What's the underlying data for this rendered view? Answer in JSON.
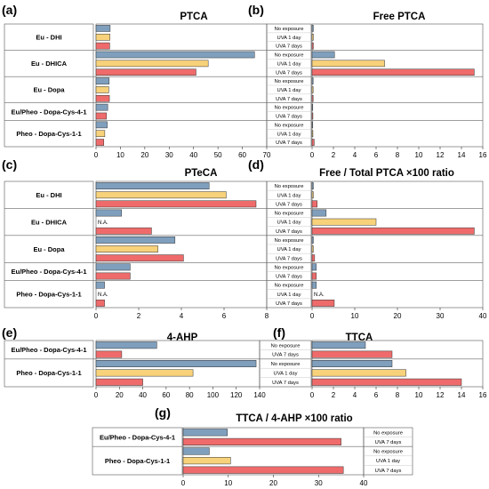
{
  "colors": {
    "No exposure": "#7f9fbd",
    "UVA 1 day": "#f7d27a",
    "UVA 7 days": "#ef6b6b"
  },
  "chart_data": [
    {
      "panel": "(a)",
      "type": "bar",
      "orientation": "horizontal",
      "title": "PTCA",
      "xlim": [
        0,
        70
      ],
      "ticks": [
        0,
        10,
        20,
        30,
        40,
        50,
        60,
        70
      ],
      "groups": [
        {
          "label": "Eu - DHI",
          "rows": [
            {
              "condition": "No exposure",
              "value": 5.8
            },
            {
              "condition": "UVA 1 day",
              "value": 5.7
            },
            {
              "condition": "UVA 7 days",
              "value": 5.6
            }
          ]
        },
        {
          "label": "Eu - DHICA",
          "rows": [
            {
              "condition": "No exposure",
              "value": 65
            },
            {
              "condition": "UVA 1 day",
              "value": 46
            },
            {
              "condition": "UVA 7 days",
              "value": 41
            }
          ]
        },
        {
          "label": "Eu - Dopa",
          "rows": [
            {
              "condition": "No exposure",
              "value": 5.4
            },
            {
              "condition": "UVA 1 day",
              "value": 5.2
            },
            {
              "condition": "UVA 7 days",
              "value": 5.5
            }
          ]
        },
        {
          "label": "Eu/Pheo - Dopa-Cys-4-1",
          "rows": [
            {
              "condition": "No exposure",
              "value": 4.8
            },
            {
              "condition": "UVA 7 days",
              "value": 4.3
            }
          ]
        },
        {
          "label": "Pheo - Dopa-Cys-1-1",
          "rows": [
            {
              "condition": "No exposure",
              "value": 4.6
            },
            {
              "condition": "UVA 1 day",
              "value": 3.6
            },
            {
              "condition": "UVA 7 days",
              "value": 3.2
            }
          ]
        }
      ]
    },
    {
      "panel": "(b)",
      "type": "bar",
      "orientation": "horizontal",
      "title": "Free PTCA",
      "xlim": [
        0,
        16
      ],
      "ticks": [
        0,
        2,
        4,
        6,
        8,
        10,
        12,
        14,
        16
      ],
      "groups": [
        {
          "rows": [
            {
              "condition": "No exposure",
              "value": 0.12
            },
            {
              "condition": "UVA 1 day",
              "value": 0.12
            },
            {
              "condition": "UVA 7 days",
              "value": 0.12
            }
          ]
        },
        {
          "rows": [
            {
              "condition": "No exposure",
              "value": 2.1
            },
            {
              "condition": "UVA 1 day",
              "value": 6.8
            },
            {
              "condition": "UVA 7 days",
              "value": 15.2
            }
          ]
        },
        {
          "rows": [
            {
              "condition": "No exposure",
              "value": 0.1
            },
            {
              "condition": "UVA 1 day",
              "value": 0.1
            },
            {
              "condition": "UVA 7 days",
              "value": 0.1
            }
          ]
        },
        {
          "rows": [
            {
              "condition": "No exposure",
              "value": 0.05
            },
            {
              "condition": "UVA 7 days",
              "value": 0.08
            }
          ]
        },
        {
          "rows": [
            {
              "condition": "No exposure",
              "value": 0.05
            },
            {
              "condition": "UVA 1 day",
              "value": 0.08
            },
            {
              "condition": "UVA 7 days",
              "value": 0.2
            }
          ]
        }
      ]
    },
    {
      "panel": "(c)",
      "type": "bar",
      "orientation": "horizontal",
      "title": "PTeCA",
      "xlim": [
        0,
        8
      ],
      "ticks": [
        0,
        2,
        4,
        6,
        8
      ],
      "groups": [
        {
          "label": "Eu - DHI",
          "rows": [
            {
              "condition": "No exposure",
              "value": 5.3
            },
            {
              "condition": "UVA 1 day",
              "value": 6.1
            },
            {
              "condition": "UVA 7 days",
              "value": 7.5
            }
          ]
        },
        {
          "label": "Eu - DHICA",
          "rows": [
            {
              "condition": "No exposure",
              "value": 1.2
            },
            {
              "condition": "UVA 1 day",
              "value": null,
              "note": "N.A."
            },
            {
              "condition": "UVA 7 days",
              "value": 2.6
            }
          ]
        },
        {
          "label": "Eu - Dopa",
          "rows": [
            {
              "condition": "No exposure",
              "value": 3.7
            },
            {
              "condition": "UVA 1 day",
              "value": 2.9
            },
            {
              "condition": "UVA 7 days",
              "value": 4.1
            }
          ]
        },
        {
          "label": "Eu/Pheo - Dopa-Cys-4-1",
          "rows": [
            {
              "condition": "No exposure",
              "value": 1.6
            },
            {
              "condition": "UVA 7 days",
              "value": 1.6
            }
          ]
        },
        {
          "label": "Pheo - Dopa-Cys-1-1",
          "rows": [
            {
              "condition": "No exposure",
              "value": 0.4
            },
            {
              "condition": "UVA 1 day",
              "value": null,
              "note": "N.A."
            },
            {
              "condition": "UVA 7 days",
              "value": 0.4
            }
          ]
        }
      ]
    },
    {
      "panel": "(d)",
      "type": "bar",
      "orientation": "horizontal",
      "title": "Free / Total PTCA ×100 ratio",
      "xlim": [
        0,
        40
      ],
      "ticks": [
        0,
        10,
        20,
        30,
        40
      ],
      "groups": [
        {
          "rows": [
            {
              "condition": "No exposure",
              "value": 0.3
            },
            {
              "condition": "UVA 1 day",
              "value": 0.3
            },
            {
              "condition": "UVA 7 days",
              "value": 1.2
            }
          ]
        },
        {
          "rows": [
            {
              "condition": "No exposure",
              "value": 3.3
            },
            {
              "condition": "UVA 1 day",
              "value": 15
            },
            {
              "condition": "UVA 7 days",
              "value": 38
            }
          ]
        },
        {
          "rows": [
            {
              "condition": "No exposure",
              "value": 0.3
            },
            {
              "condition": "UVA 1 day",
              "value": 0.3
            },
            {
              "condition": "UVA 7 days",
              "value": 0.6
            }
          ]
        },
        {
          "rows": [
            {
              "condition": "No exposure",
              "value": 1.0
            },
            {
              "condition": "UVA 7 days",
              "value": 1.0
            }
          ]
        },
        {
          "rows": [
            {
              "condition": "No exposure",
              "value": 1.0
            },
            {
              "condition": "UVA 1 day",
              "value": null,
              "note": "N.A."
            },
            {
              "condition": "UVA 7 days",
              "value": 5.2
            }
          ]
        }
      ]
    },
    {
      "panel": "(e)",
      "type": "bar",
      "orientation": "horizontal",
      "title": "4-AHP",
      "xlim": [
        0,
        140
      ],
      "ticks": [
        0,
        20,
        40,
        60,
        80,
        100,
        120,
        140
      ],
      "groups": [
        {
          "label": "Eu/Pheo - Dopa-Cys-4-1",
          "rows": [
            {
              "condition": "No exposure",
              "value": 52
            },
            {
              "condition": "UVA 7 days",
              "value": 22
            }
          ]
        },
        {
          "label": "Pheo - Dopa-Cys-1-1",
          "rows": [
            {
              "condition": "No exposure",
              "value": 137
            },
            {
              "condition": "UVA 1 day",
              "value": 83
            },
            {
              "condition": "UVA 7 days",
              "value": 40
            }
          ]
        }
      ]
    },
    {
      "panel": "(f)",
      "type": "bar",
      "orientation": "horizontal",
      "title": "TTCA",
      "xlim": [
        0,
        16
      ],
      "ticks": [
        0,
        2,
        4,
        6,
        8,
        10,
        12,
        14,
        16
      ],
      "groups": [
        {
          "rows": [
            {
              "condition": "No exposure",
              "value": 5.0
            },
            {
              "condition": "UVA 7 days",
              "value": 7.5
            }
          ]
        },
        {
          "rows": [
            {
              "condition": "No exposure",
              "value": 7.5
            },
            {
              "condition": "UVA 1 day",
              "value": 8.8
            },
            {
              "condition": "UVA 7 days",
              "value": 14.0
            }
          ]
        }
      ]
    },
    {
      "panel": "(g)",
      "type": "bar",
      "orientation": "horizontal",
      "title": "TTCA / 4-AHP ×100 ratio",
      "xlim": [
        0,
        40
      ],
      "ticks": [
        0,
        10,
        20,
        30,
        40
      ],
      "groups": [
        {
          "label": "Eu/Pheo - Dopa-Cys-4-1",
          "rows": [
            {
              "condition": "No exposure",
              "value": 9.8
            },
            {
              "condition": "UVA 7 days",
              "value": 35
            }
          ]
        },
        {
          "label": "Pheo - Dopa-Cys-1-1",
          "rows": [
            {
              "condition": "No exposure",
              "value": 5.8
            },
            {
              "condition": "UVA 1 day",
              "value": 10.5
            },
            {
              "condition": "UVA 7 days",
              "value": 35.5
            }
          ]
        }
      ]
    }
  ]
}
